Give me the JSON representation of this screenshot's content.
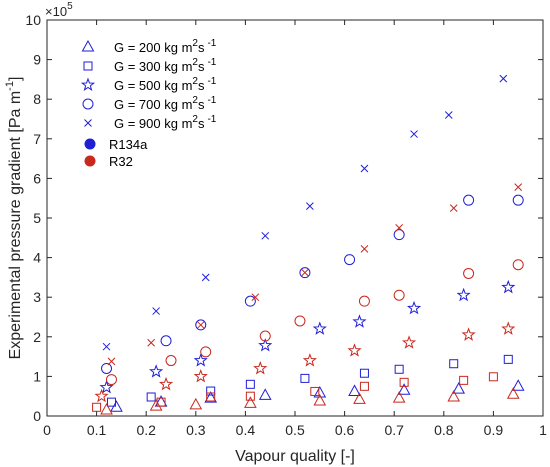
{
  "chart_data": {
    "type": "scatter",
    "xlabel": "Vapour quality [-]",
    "ylabel": "Experimental pressure gradient [Pa  m",
    "ylabel_exp": "-1",
    "ylabel_close": "]",
    "y_multiplier_label": "×10",
    "y_multiplier_exp": "5",
    "xlim": [
      0,
      1
    ],
    "ylim": [
      0,
      10
    ],
    "x_ticks": [
      "0",
      "0.1",
      "0.2",
      "0.3",
      "0.4",
      "0.5",
      "0.6",
      "0.7",
      "0.8",
      "0.9",
      "1"
    ],
    "y_ticks": [
      "0",
      "1",
      "2",
      "3",
      "4",
      "5",
      "6",
      "7",
      "8",
      "9",
      "10"
    ],
    "legend_position": "top-left",
    "colors": {
      "R134a": "#1f1fd6",
      "R32": "#c8281e"
    },
    "legend": {
      "mass_flux": [
        {
          "marker": "triangle",
          "label": "G = 200 kg  m",
          "exp1": "2",
          "mid": "s",
          "exp2": "-1"
        },
        {
          "marker": "square",
          "label": "G = 300 kg  m",
          "exp1": "2",
          "mid": "s",
          "exp2": "-1"
        },
        {
          "marker": "star",
          "label": "G = 500 kg  m",
          "exp1": "2",
          "mid": "s",
          "exp2": "-1"
        },
        {
          "marker": "circle",
          "label": "G = 700 kg  m",
          "exp1": "2",
          "mid": "s",
          "exp2": "-1"
        },
        {
          "marker": "x",
          "label": "G = 900 kg  m",
          "exp1": "2",
          "mid": "s",
          "exp2": "-1"
        }
      ],
      "fluids": [
        {
          "name": "R134a",
          "color": "#1f1fd6"
        },
        {
          "name": "R32",
          "color": "#c8281e"
        }
      ]
    },
    "series": [
      {
        "fluid": "R134a",
        "G": 200,
        "marker": "triangle",
        "x": [
          0.14,
          0.23,
          0.33,
          0.44,
          0.55,
          0.62,
          0.72,
          0.83,
          0.95
        ],
        "y": [
          0.22,
          0.35,
          0.45,
          0.52,
          0.58,
          0.62,
          0.65,
          0.68,
          0.75
        ]
      },
      {
        "fluid": "R134a",
        "G": 300,
        "marker": "square",
        "x": [
          0.13,
          0.21,
          0.33,
          0.41,
          0.52,
          0.64,
          0.71,
          0.82,
          0.93
        ],
        "y": [
          0.35,
          0.48,
          0.63,
          0.8,
          0.95,
          1.08,
          1.18,
          1.32,
          1.43
        ]
      },
      {
        "fluid": "R134a",
        "G": 500,
        "marker": "star",
        "x": [
          0.12,
          0.22,
          0.31,
          0.44,
          0.55,
          0.63,
          0.74,
          0.84,
          0.93
        ],
        "y": [
          0.72,
          1.12,
          1.4,
          1.78,
          2.2,
          2.38,
          2.72,
          3.05,
          3.25
        ]
      },
      {
        "fluid": "R134a",
        "G": 700,
        "marker": "circle",
        "x": [
          0.12,
          0.24,
          0.31,
          0.41,
          0.52,
          0.61,
          0.71,
          0.85,
          0.95
        ],
        "y": [
          1.2,
          1.9,
          2.3,
          2.9,
          3.62,
          3.95,
          4.58,
          5.45,
          5.45
        ]
      },
      {
        "fluid": "R134a",
        "G": 900,
        "marker": "x",
        "x": [
          0.12,
          0.22,
          0.32,
          0.44,
          0.53,
          0.64,
          0.74,
          0.81,
          0.92
        ],
        "y": [
          1.75,
          2.65,
          3.5,
          4.55,
          5.3,
          6.25,
          7.12,
          7.6,
          8.52
        ]
      },
      {
        "fluid": "R32",
        "G": 200,
        "marker": "triangle",
        "x": [
          0.12,
          0.22,
          0.3,
          0.41,
          0.55,
          0.63,
          0.71,
          0.82,
          0.94
        ],
        "y": [
          0.15,
          0.25,
          0.28,
          0.32,
          0.38,
          0.42,
          0.45,
          0.48,
          0.55
        ]
      },
      {
        "fluid": "R32",
        "G": 300,
        "marker": "square",
        "x": [
          0.1,
          0.23,
          0.33,
          0.41,
          0.54,
          0.64,
          0.72,
          0.84,
          0.9
        ],
        "y": [
          0.22,
          0.35,
          0.48,
          0.5,
          0.62,
          0.75,
          0.85,
          0.9,
          0.99
        ]
      },
      {
        "fluid": "R32",
        "G": 500,
        "marker": "star",
        "x": [
          0.11,
          0.24,
          0.31,
          0.43,
          0.53,
          0.62,
          0.73,
          0.85,
          0.93
        ],
        "y": [
          0.5,
          0.8,
          1.0,
          1.2,
          1.4,
          1.65,
          1.85,
          2.05,
          2.2
        ]
      },
      {
        "fluid": "R32",
        "G": 700,
        "marker": "circle",
        "x": [
          0.13,
          0.25,
          0.32,
          0.44,
          0.51,
          0.64,
          0.71,
          0.85,
          0.95
        ],
        "y": [
          0.92,
          1.4,
          1.62,
          2.02,
          2.4,
          2.9,
          3.05,
          3.6,
          3.82
        ]
      },
      {
        "fluid": "R32",
        "G": 900,
        "marker": "x",
        "x": [
          0.13,
          0.21,
          0.31,
          0.42,
          0.52,
          0.64,
          0.71,
          0.82,
          0.95
        ],
        "y": [
          1.38,
          1.85,
          2.3,
          3.0,
          3.62,
          4.22,
          4.75,
          5.25,
          5.78
        ]
      }
    ]
  }
}
